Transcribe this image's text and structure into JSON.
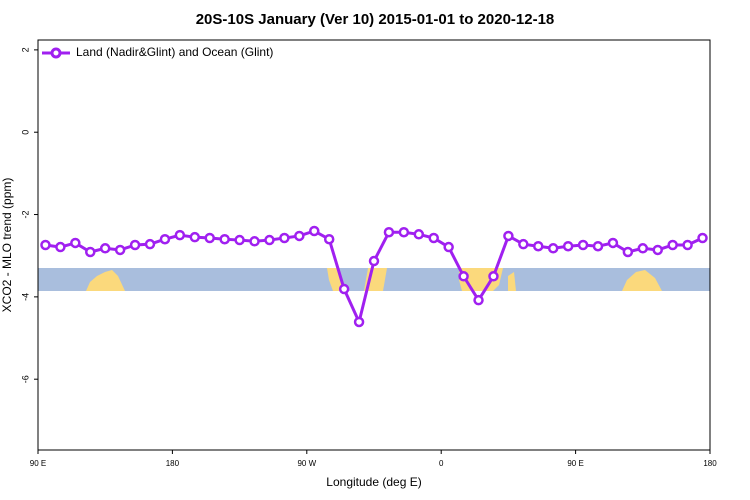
{
  "chart_data": {
    "type": "line",
    "title": "20S-10S January (Ver 10)   2015-01-01 to 2020-12-18",
    "x_label": "Longitude (deg E)",
    "y_label": "XCO2 - MLO trend (ppm)",
    "x": [
      95,
      105,
      115,
      125,
      135,
      145,
      155,
      165,
      175,
      185,
      195,
      205,
      215,
      225,
      235,
      245,
      255,
      265,
      275,
      285,
      295,
      305,
      315,
      325,
      335,
      345,
      355,
      365,
      375,
      385,
      395,
      405,
      415,
      425,
      435,
      445,
      455,
      465,
      475,
      485,
      495,
      505,
      515,
      525,
      535
    ],
    "series": [
      {
        "name": "Land (Nadir&Glint) and Ocean (Glint)",
        "color": "#a020f0",
        "values": [
          -2.74,
          -2.79,
          -2.69,
          -2.91,
          -2.82,
          -2.86,
          -2.74,
          -2.72,
          -2.6,
          -2.5,
          -2.55,
          -2.57,
          -2.6,
          -2.62,
          -2.65,
          -2.62,
          -2.57,
          -2.52,
          -2.4,
          -2.6,
          -3.81,
          -4.61,
          -3.13,
          -2.43,
          -2.43,
          -2.48,
          -2.57,
          -2.79,
          -3.5,
          -4.08,
          -3.5,
          -2.52,
          -2.72,
          -2.77,
          -2.82,
          -2.77,
          -2.74,
          -2.77,
          -2.69,
          -2.91,
          -2.82,
          -2.86,
          -2.74,
          -2.74,
          -2.57
        ]
      }
    ],
    "xlim": [
      90,
      540
    ],
    "xticks": [
      {
        "value": 90,
        "label": "90 E"
      },
      180,
      {
        "value": 270,
        "label": "90 W"
      },
      {
        "value": 360,
        "label": "0"
      },
      {
        "value": 450,
        "label": "90 E"
      },
      {
        "value": 540,
        "label": "180"
      }
    ],
    "ylim": [
      -7.72,
      2.24
    ],
    "yticks": [
      2,
      0,
      -2,
      -4,
      -6
    ],
    "legend": "top-left"
  }
}
